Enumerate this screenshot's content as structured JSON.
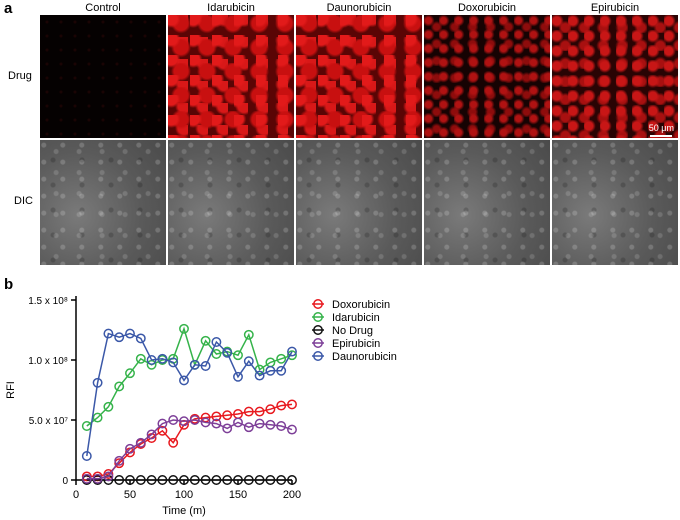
{
  "panel_a": {
    "letter": "a",
    "columns": [
      "Control",
      "Idarubicin",
      "Daunorubicin",
      "Doxorubicin",
      "Epirubicin"
    ],
    "rows": [
      "Drug",
      "DIC"
    ],
    "scale_bar": "50 μm"
  },
  "panel_b": {
    "letter": "b"
  },
  "colors": {
    "Doxorubicin": "#e8191f",
    "Idarubicin": "#35b34a",
    "No Drug": "#111111",
    "Epirubicin": "#7d3f98",
    "Daunorubicin": "#3b58a8"
  },
  "chart_data": {
    "type": "line",
    "xlabel": "Time (m)",
    "ylabel": "RFI",
    "xlim": [
      0,
      200
    ],
    "ylim": [
      0,
      150000000
    ],
    "x_ticks": [
      "0",
      "50",
      "100",
      "150",
      "200"
    ],
    "y_ticks": [
      "0",
      "5.0 x 10⁷",
      "1.0 x 10⁸",
      "1.5 x 10⁸"
    ],
    "legend_position": "right",
    "x": [
      10,
      20,
      30,
      40,
      50,
      60,
      70,
      80,
      90,
      100,
      110,
      120,
      130,
      140,
      150,
      160,
      170,
      180,
      190,
      200
    ],
    "series": [
      {
        "name": "Doxorubicin",
        "values": [
          3000000,
          3000000,
          5000000,
          14000000,
          23000000,
          30000000,
          35000000,
          41000000,
          31000000,
          46000000,
          51000000,
          52000000,
          53000000,
          54000000,
          55000000,
          57000000,
          57000000,
          59000000,
          62000000,
          63000000
        ]
      },
      {
        "name": "Idarubicin",
        "values": [
          45000000,
          52000000,
          61000000,
          78000000,
          89000000,
          101000000,
          96000000,
          100000000,
          101000000,
          126000000,
          96000000,
          116000000,
          105000000,
          107000000,
          104000000,
          121000000,
          92000000,
          98000000,
          101000000,
          104000000
        ]
      },
      {
        "name": "No Drug",
        "values": [
          0,
          0,
          0,
          0,
          0,
          0,
          0,
          0,
          0,
          0,
          0,
          0,
          0,
          0,
          0,
          0,
          0,
          0,
          0,
          0
        ]
      },
      {
        "name": "Epirubicin",
        "values": [
          1000000,
          1000000,
          3000000,
          16000000,
          26000000,
          31000000,
          38000000,
          47000000,
          50000000,
          49000000,
          50000000,
          48000000,
          47000000,
          43000000,
          48000000,
          44000000,
          47000000,
          46000000,
          45000000,
          42000000
        ]
      },
      {
        "name": "Daunorubicin",
        "values": [
          20000000,
          81000000,
          122000000,
          119000000,
          122000000,
          118000000,
          100000000,
          101000000,
          98000000,
          83000000,
          96000000,
          95000000,
          115000000,
          106000000,
          86000000,
          99000000,
          87000000,
          91000000,
          91000000,
          107000000
        ]
      }
    ]
  }
}
